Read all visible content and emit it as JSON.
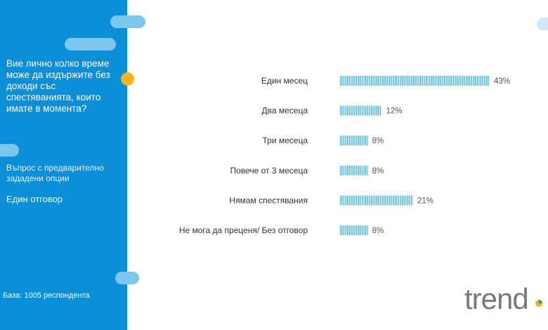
{
  "sidebar": {
    "question": "Вие лично колко време може да издържите без доходи със спестяванията, които имате в момента?",
    "question_type": "Въпрос с предварително зададени опции",
    "answer_type": "Един отговор",
    "base": "База: 1005 респондента"
  },
  "brand": {
    "logo_text": "trend",
    "accent": "#0a8fd8",
    "bar_color": "#3fb0e0",
    "highlight": "#f5b51b"
  },
  "chart_data": {
    "type": "bar",
    "orientation": "horizontal",
    "categories": [
      "Един месец",
      "Два месеца",
      "Три месеца",
      "Повече от 3 месеца",
      "Нямам спестявания",
      "Не мога да преценя/ Без отговор"
    ],
    "values": [
      43,
      12,
      8,
      8,
      21,
      8
    ],
    "value_labels": [
      "43%",
      "12%",
      "8%",
      "8%",
      "21%",
      "8%"
    ],
    "unit": "%",
    "grid": false,
    "legend": "none",
    "bar_pattern": "vertical-stripes"
  }
}
